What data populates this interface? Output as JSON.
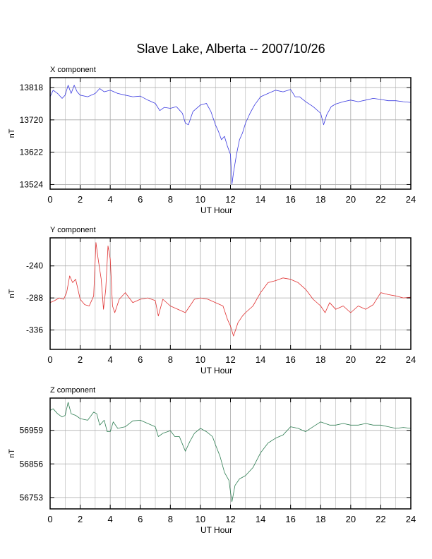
{
  "title": "Slave Lake, Alberta -- 2007/10/26",
  "colors": {
    "x_series": "#3a3ae0",
    "y_series": "#e03030",
    "z_series": "#2e7d52",
    "grid": "#a8a8a8",
    "frame": "#000000"
  },
  "chart_data": [
    {
      "type": "line",
      "panel_title": "X component",
      "xlabel": "UT Hour",
      "ylabel": "nT",
      "xlim": [
        0,
        24
      ],
      "x_ticks": [
        0,
        2,
        4,
        6,
        8,
        10,
        12,
        14,
        16,
        18,
        20,
        22,
        24
      ],
      "ylim": [
        13510,
        13848
      ],
      "y_ticks": [
        13524,
        13622,
        13720,
        13818
      ],
      "grid": true,
      "series": [
        {
          "color": "#3a3ae0",
          "x": [
            0,
            0.2,
            0.5,
            0.8,
            1.0,
            1.2,
            1.4,
            1.6,
            1.8,
            2.0,
            2.5,
            3.0,
            3.3,
            3.6,
            4.0,
            4.5,
            5.0,
            5.5,
            6.0,
            6.5,
            7.0,
            7.3,
            7.6,
            8.0,
            8.4,
            8.8,
            9.0,
            9.2,
            9.5,
            10.0,
            10.4,
            10.7,
            11.0,
            11.2,
            11.4,
            11.6,
            11.8,
            12.0,
            12.1,
            12.2,
            12.4,
            12.6,
            12.8,
            13.0,
            13.3,
            13.6,
            14.0,
            14.5,
            15.0,
            15.5,
            16.0,
            16.3,
            16.6,
            17.0,
            17.5,
            18.0,
            18.2,
            18.4,
            18.7,
            19.0,
            19.5,
            20.0,
            20.5,
            21.0,
            21.5,
            22.0,
            22.5,
            23.0,
            23.5,
            24.0
          ],
          "y": [
            13790,
            13810,
            13800,
            13785,
            13795,
            13825,
            13800,
            13825,
            13805,
            13795,
            13790,
            13800,
            13815,
            13805,
            13810,
            13800,
            13795,
            13790,
            13792,
            13780,
            13770,
            13748,
            13758,
            13755,
            13760,
            13740,
            13710,
            13705,
            13745,
            13765,
            13770,
            13745,
            13705,
            13685,
            13660,
            13670,
            13640,
            13615,
            13525,
            13560,
            13615,
            13660,
            13680,
            13710,
            13740,
            13765,
            13790,
            13800,
            13810,
            13805,
            13812,
            13790,
            13790,
            13775,
            13760,
            13740,
            13705,
            13735,
            13760,
            13768,
            13775,
            13780,
            13775,
            13780,
            13785,
            13782,
            13778,
            13778,
            13775,
            13773
          ]
        }
      ]
    },
    {
      "type": "line",
      "panel_title": "Y component",
      "xlabel": "UT Hour",
      "ylabel": "nT",
      "xlim": [
        0,
        24
      ],
      "x_ticks": [
        0,
        2,
        4,
        6,
        8,
        10,
        12,
        14,
        16,
        18,
        20,
        22,
        24
      ],
      "ylim": [
        -365,
        -198
      ],
      "y_ticks": [
        -240,
        -288,
        -336
      ],
      "grid": true,
      "series": [
        {
          "color": "#e03030",
          "x": [
            0,
            0.3,
            0.6,
            0.9,
            1.1,
            1.3,
            1.5,
            1.7,
            2.0,
            2.3,
            2.6,
            2.9,
            3.05,
            3.2,
            3.4,
            3.55,
            3.7,
            3.85,
            4.0,
            4.15,
            4.3,
            4.6,
            5.0,
            5.5,
            6.0,
            6.5,
            7.0,
            7.2,
            7.5,
            8.0,
            8.5,
            9.0,
            9.3,
            9.6,
            10.0,
            10.5,
            11.0,
            11.5,
            11.8,
            12.0,
            12.2,
            12.5,
            12.8,
            13.0,
            13.5,
            14.0,
            14.5,
            15.0,
            15.5,
            16.0,
            16.5,
            17.0,
            17.5,
            18.0,
            18.3,
            18.6,
            19.0,
            19.5,
            20.0,
            20.5,
            21.0,
            21.5,
            22.0,
            22.5,
            23.0,
            23.5,
            24.0
          ],
          "y": [
            -295,
            -292,
            -288,
            -290,
            -280,
            -255,
            -265,
            -260,
            -290,
            -298,
            -300,
            -285,
            -205,
            -230,
            -260,
            -305,
            -275,
            -210,
            -230,
            -300,
            -310,
            -290,
            -280,
            -295,
            -290,
            -288,
            -292,
            -315,
            -290,
            -300,
            -305,
            -310,
            -300,
            -290,
            -288,
            -290,
            -295,
            -300,
            -320,
            -330,
            -345,
            -325,
            -315,
            -310,
            -300,
            -280,
            -265,
            -262,
            -258,
            -260,
            -265,
            -275,
            -290,
            -300,
            -310,
            -295,
            -305,
            -300,
            -310,
            -300,
            -305,
            -298,
            -280,
            -283,
            -285,
            -288,
            -287
          ]
        }
      ]
    },
    {
      "type": "line",
      "panel_title": "Z component",
      "xlabel": "UT Hour",
      "ylabel": "nT",
      "xlim": [
        0,
        24
      ],
      "x_ticks": [
        0,
        2,
        4,
        6,
        8,
        10,
        12,
        14,
        16,
        18,
        20,
        22,
        24
      ],
      "ylim": [
        56718,
        57058
      ],
      "y_ticks": [
        56753,
        56856,
        56959
      ],
      "grid": true,
      "series": [
        {
          "color": "#2e7d52",
          "x": [
            0,
            0.2,
            0.5,
            0.8,
            1.0,
            1.2,
            1.4,
            1.7,
            2.0,
            2.5,
            2.9,
            3.1,
            3.3,
            3.6,
            3.8,
            4.0,
            4.2,
            4.5,
            5.0,
            5.5,
            6.0,
            6.5,
            7.0,
            7.2,
            7.5,
            8.0,
            8.3,
            8.6,
            9.0,
            9.3,
            9.6,
            10.0,
            10.4,
            10.8,
            11.0,
            11.3,
            11.6,
            11.9,
            12.0,
            12.1,
            12.3,
            12.6,
            13.0,
            13.5,
            14.0,
            14.5,
            15.0,
            15.5,
            16.0,
            16.5,
            17.0,
            17.5,
            18.0,
            18.3,
            18.6,
            19.0,
            19.5,
            20.0,
            20.5,
            21.0,
            21.5,
            22.0,
            22.5,
            23.0,
            23.5,
            24.0
          ],
          "y": [
            57020,
            57025,
            57010,
            57000,
            57005,
            57045,
            57010,
            57005,
            56995,
            56990,
            57015,
            57010,
            56975,
            56990,
            56955,
            56955,
            56985,
            56965,
            56970,
            56988,
            56990,
            56980,
            56970,
            56940,
            56950,
            56958,
            56940,
            56940,
            56895,
            56925,
            56950,
            56965,
            56955,
            56940,
            56915,
            56880,
            56830,
            56805,
            56770,
            56740,
            56790,
            56810,
            56820,
            56845,
            56890,
            56920,
            56935,
            56945,
            56970,
            56965,
            56955,
            56970,
            56985,
            56980,
            56975,
            56975,
            56980,
            56975,
            56975,
            56980,
            56975,
            56975,
            56970,
            56965,
            56968,
            56965
          ]
        }
      ]
    }
  ]
}
